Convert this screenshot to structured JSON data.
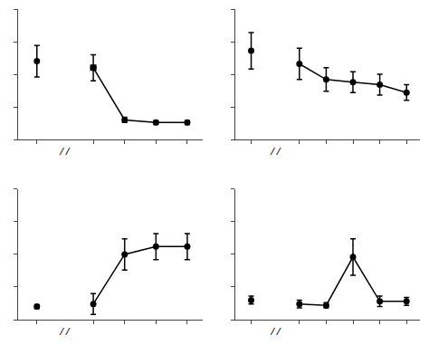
{
  "chart_data": [
    {
      "type": "line",
      "x": [
        -0.8,
        1,
        2,
        3,
        4
      ],
      "series": [
        {
          "type": "scatter",
          "marker": "circle",
          "color": "#000000",
          "values": [
            60,
            null,
            null,
            null,
            null
          ],
          "error": [
            12,
            null,
            null,
            null,
            null
          ]
        },
        {
          "type": "line",
          "marker": "circle",
          "line_style": "solid",
          "color": "#000000",
          "values": [
            null,
            55,
            15,
            13,
            13
          ],
          "error": [
            null,
            10,
            2,
            1.5,
            1.5
          ]
        },
        {
          "type": "scatter",
          "marker": "square",
          "color": "#000000",
          "values": [
            null,
            55,
            null,
            null,
            null
          ]
        }
      ],
      "xlim": [
        -1.4,
        4.5
      ],
      "xticks": [
        -0.8,
        1,
        2,
        3,
        4
      ],
      "ylim": [
        0,
        100
      ],
      "yticks": [
        0,
        25,
        50,
        75,
        100
      ],
      "annotations": [
        {
          "text": "//",
          "x": 0.1
        }
      ],
      "grid": false,
      "tick_labels": false
    },
    {
      "type": "line",
      "x": [
        -0.8,
        1,
        2,
        3,
        4,
        5
      ],
      "series": [
        {
          "type": "scatter",
          "marker": "circle",
          "color": "#000000",
          "values": [
            68,
            null,
            null,
            null,
            null,
            null
          ],
          "error": [
            14,
            null,
            null,
            null,
            null,
            null
          ]
        },
        {
          "type": "line",
          "marker": "circle",
          "line_style": "solid",
          "color": "#000000",
          "values": [
            null,
            58,
            46,
            44,
            42,
            36
          ],
          "error": [
            null,
            12,
            9,
            8,
            8,
            6
          ]
        }
      ],
      "xlim": [
        -1.4,
        5.5
      ],
      "xticks": [
        -0.8,
        1,
        2,
        3,
        4,
        5
      ],
      "ylim": [
        0,
        100
      ],
      "yticks": [
        0,
        25,
        50,
        75,
        100
      ],
      "annotations": [
        {
          "text": "//",
          "x": 0.1
        }
      ],
      "grid": false,
      "tick_labels": false
    },
    {
      "type": "line",
      "x": [
        -0.8,
        1,
        2,
        3,
        4
      ],
      "series": [
        {
          "type": "scatter",
          "marker": "circle",
          "color": "#000000",
          "values": [
            10,
            null,
            null,
            null,
            null
          ],
          "error": [
            1.5,
            null,
            null,
            null,
            null
          ]
        },
        {
          "type": "line",
          "marker": "circle",
          "line_style": "solid",
          "color": "#000000",
          "values": [
            null,
            12,
            50,
            56,
            56
          ],
          "error": [
            null,
            8,
            12,
            10,
            10
          ]
        }
      ],
      "xlim": [
        -1.4,
        4.5
      ],
      "xticks": [
        -0.8,
        1,
        2,
        3,
        4
      ],
      "ylim": [
        0,
        100
      ],
      "yticks": [
        0,
        25,
        50,
        75,
        100
      ],
      "annotations": [
        {
          "text": "//",
          "x": 0.1
        }
      ],
      "grid": false,
      "tick_labels": false
    },
    {
      "type": "line",
      "x": [
        -0.8,
        1,
        2,
        3,
        4,
        5
      ],
      "series": [
        {
          "type": "scatter",
          "marker": "circle",
          "color": "#000000",
          "values": [
            15,
            null,
            null,
            null,
            null,
            null
          ],
          "error": [
            3,
            null,
            null,
            null,
            null,
            null
          ]
        },
        {
          "type": "line",
          "marker": "circle",
          "line_style": "solid",
          "color": "#000000",
          "values": [
            null,
            12,
            11,
            48,
            14,
            14
          ],
          "error": [
            null,
            3,
            2,
            14,
            4,
            3
          ]
        }
      ],
      "xlim": [
        -1.4,
        5.5
      ],
      "xticks": [
        -0.8,
        1,
        2,
        3,
        4,
        5
      ],
      "ylim": [
        0,
        100
      ],
      "yticks": [
        0,
        25,
        50,
        75,
        100
      ],
      "annotations": [
        {
          "text": "//",
          "x": 0.1
        }
      ],
      "grid": false,
      "tick_labels": false
    }
  ]
}
